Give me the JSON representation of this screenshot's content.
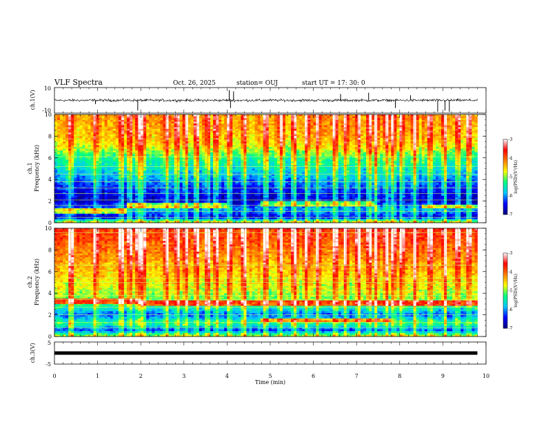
{
  "header": {
    "title": "VLF Spectra",
    "date": "Oct. 26, 2025",
    "station": "station= OUJ",
    "start": "start  UT =   17: 30: 0"
  },
  "chart_data": [
    {
      "type": "line",
      "panel": "ch1-waveform",
      "ylabel": "ch.1(V)",
      "ylim": [
        -10,
        10
      ],
      "ytick_labels": [
        "10",
        "-10"
      ],
      "xlim": [
        0,
        9.8
      ],
      "baseline": 0,
      "noise_amplitude": 1.5,
      "spikes": [
        {
          "t": 0.95,
          "v": -3
        },
        {
          "t": 1.93,
          "v": -8
        },
        {
          "t": 4.05,
          "v": 8
        },
        {
          "t": 4.08,
          "v": -6
        },
        {
          "t": 4.15,
          "v": 7
        },
        {
          "t": 6.63,
          "v": 5
        },
        {
          "t": 7.28,
          "v": 6
        },
        {
          "t": 7.9,
          "v": -6
        },
        {
          "t": 8.25,
          "v": 4
        },
        {
          "t": 8.88,
          "v": -9
        },
        {
          "t": 9.05,
          "v": -8
        },
        {
          "t": 9.15,
          "v": -9
        }
      ]
    },
    {
      "type": "heatmap",
      "panel": "ch1-spectrogram",
      "ylabel": "ch.1",
      "ylabel2": "Frequency  (kHz)",
      "ylim": [
        0,
        10
      ],
      "ytick_labels": [
        "0",
        "2",
        "4",
        "6",
        "8",
        "10"
      ],
      "xlim": [
        0,
        9.8
      ],
      "value_profile": [
        {
          "f": 0,
          "v": -4.6
        },
        {
          "f": 0.5,
          "v": -6.6
        },
        {
          "f": 1.2,
          "v": -5.9
        },
        {
          "f": 2.0,
          "v": -6.7
        },
        {
          "f": 3.0,
          "v": -6.4
        },
        {
          "f": 4.0,
          "v": -6.0
        },
        {
          "f": 5.0,
          "v": -5.6
        },
        {
          "f": 6.0,
          "v": -5.3
        },
        {
          "f": 7.0,
          "v": -4.7
        },
        {
          "f": 8.0,
          "v": -4.4
        },
        {
          "f": 9.0,
          "v": -4.3
        },
        {
          "f": 10.0,
          "v": -4.2
        }
      ],
      "bright_lines_khz": [
        0.5,
        1.05,
        1.6,
        2.1,
        2.7,
        3.2,
        3.8,
        4.5,
        5.2,
        6.1
      ],
      "emission_bands": [
        {
          "t0": 0,
          "t1": 1.7,
          "f": 1.1
        },
        {
          "t0": 1.7,
          "t1": 4.0,
          "f": 1.65
        },
        {
          "t0": 4.8,
          "t1": 7.4,
          "f": 1.7
        },
        {
          "t0": 8.5,
          "t1": 9.8,
          "f": 1.5
        }
      ],
      "colorbar": {
        "label": "log(PSD)(V²/Hz)",
        "range": [
          -7,
          -3
        ],
        "ticks": [
          "-3",
          "-4",
          "-5",
          "-6",
          "-7"
        ]
      }
    },
    {
      "type": "heatmap",
      "panel": "ch2-spectrogram",
      "ylabel": "ch.2",
      "ylabel2": "Frequency  (kHz)",
      "ylim": [
        0,
        10
      ],
      "ytick_labels": [
        "0",
        "2",
        "4",
        "6",
        "8",
        "10"
      ],
      "xlim": [
        0,
        9.8
      ],
      "value_profile": [
        {
          "f": 0,
          "v": -4.8
        },
        {
          "f": 0.6,
          "v": -6.3
        },
        {
          "f": 1.2,
          "v": -5.3
        },
        {
          "f": 2.0,
          "v": -6.2
        },
        {
          "f": 3.0,
          "v": -5.2
        },
        {
          "f": 4.0,
          "v": -4.9
        },
        {
          "f": 5.0,
          "v": -4.7
        },
        {
          "f": 6.0,
          "v": -4.5
        },
        {
          "f": 7.0,
          "v": -4.3
        },
        {
          "f": 8.0,
          "v": -4.1
        },
        {
          "f": 9.0,
          "v": -3.9
        },
        {
          "f": 10.0,
          "v": -3.8
        }
      ],
      "bright_lines_khz": [
        0.8,
        1.3,
        2.0,
        2.7,
        3.4,
        3.8,
        4.2,
        5.0,
        5.4,
        6.6,
        9.6
      ],
      "emission_bands": [
        {
          "t0": 0,
          "t1": 2.0,
          "f": 3.2
        },
        {
          "t0": 2.0,
          "t1": 5.4,
          "f": 3.0
        },
        {
          "t0": 5.4,
          "t1": 9.8,
          "f": 3.1
        },
        {
          "t0": 4.8,
          "t1": 7.8,
          "f": 1.5
        }
      ],
      "colorbar": {
        "label": "log(PSD)(V²/Hz)",
        "range": [
          -7,
          -3
        ],
        "ticks": [
          "-3",
          "-4",
          "-5",
          "-6",
          "-7"
        ]
      }
    },
    {
      "type": "line",
      "panel": "ch3-waveform",
      "ylabel": "ch.3(V)",
      "ylim": [
        -5,
        5
      ],
      "ytick_labels": [
        "5",
        "-5"
      ],
      "xlim": [
        0,
        9.8
      ],
      "constant_value": 0
    }
  ],
  "xaxis": {
    "label": "Time  (min)",
    "ticks": [
      "0",
      "1",
      "2",
      "3",
      "4",
      "5",
      "6",
      "7",
      "8",
      "9",
      "10"
    ],
    "range": [
      0,
      10
    ]
  },
  "burst_times_min": [
    0.38,
    0.95,
    1.55,
    1.75,
    1.95,
    2.05,
    2.6,
    2.85,
    3.05,
    3.3,
    3.55,
    3.75,
    4.05,
    4.4,
    4.9,
    5.25,
    5.55,
    5.85,
    6.1,
    6.5,
    6.75,
    7.05,
    7.3,
    7.45,
    7.7,
    7.85,
    8.05,
    8.35,
    8.7,
    9.05,
    9.35,
    9.6
  ],
  "colors": {
    "cmap": [
      "#000080",
      "#0000ff",
      "#00c8ff",
      "#00ff80",
      "#ffff00",
      "#ff8000",
      "#ff0000",
      "#ffffff"
    ]
  }
}
